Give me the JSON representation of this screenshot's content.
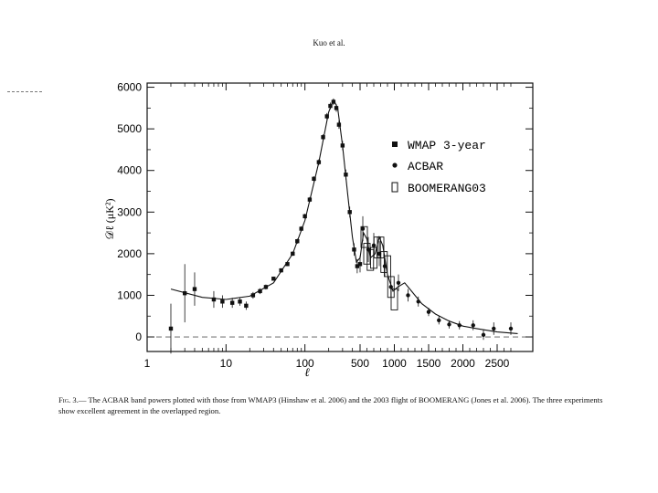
{
  "page": {
    "header": "Kuo et al.",
    "caption_label": "Fig. 3.—",
    "caption_text": "The ACBAR band powers plotted with those from WMAP3 (Hinshaw et al. 2006) and the 2003 flight of BOOMERANG (Jones et al. 2006). The three experiments show excellent agreement in the overlapped region."
  },
  "chart_data": {
    "type": "scatter",
    "title": "",
    "xlabel": "ℓ",
    "ylabel": "𝒟ℓ   (μK²)",
    "x_scale": "log below ℓ=500, linear above",
    "xlim": [
      1,
      2800
    ],
    "ylim": [
      -350,
      6100
    ],
    "x_ticks": [
      {
        "value": 1,
        "label": "1"
      },
      {
        "value": 10,
        "label": "10"
      },
      {
        "value": 100,
        "label": "100"
      },
      {
        "value": 500,
        "label": "500"
      },
      {
        "value": 1000,
        "label": "1000"
      },
      {
        "value": 1500,
        "label": "1500"
      },
      {
        "value": 2000,
        "label": "2000"
      },
      {
        "value": 2500,
        "label": "2500"
      }
    ],
    "y_ticks": [
      {
        "value": 0,
        "label": "0"
      },
      {
        "value": 1000,
        "label": "1000"
      },
      {
        "value": 2000,
        "label": "2000"
      },
      {
        "value": 3000,
        "label": "3000"
      },
      {
        "value": 4000,
        "label": "4000"
      },
      {
        "value": 5000,
        "label": "5000"
      },
      {
        "value": 6000,
        "label": "6000"
      }
    ],
    "legend_position": "upper-right",
    "series": [
      {
        "name": "WMAP 3-year",
        "marker": "square",
        "points": [
          {
            "x": 2,
            "y": 200,
            "err": 600
          },
          {
            "x": 3,
            "y": 1050,
            "err": 700
          },
          {
            "x": 4,
            "y": 1150,
            "err": 400
          },
          {
            "x": 7,
            "y": 900,
            "err": 200
          },
          {
            "x": 9,
            "y": 850,
            "err": 150
          },
          {
            "x": 12,
            "y": 820,
            "err": 120
          },
          {
            "x": 15,
            "y": 850,
            "err": 100
          },
          {
            "x": 18,
            "y": 750,
            "err": 100
          },
          {
            "x": 22,
            "y": 1000,
            "err": 80
          },
          {
            "x": 27,
            "y": 1100,
            "err": 70
          },
          {
            "x": 32,
            "y": 1200,
            "err": 60
          },
          {
            "x": 40,
            "y": 1400,
            "err": 50
          },
          {
            "x": 50,
            "y": 1600,
            "err": 50
          },
          {
            "x": 60,
            "y": 1750,
            "err": 50
          },
          {
            "x": 70,
            "y": 2000,
            "err": 50
          },
          {
            "x": 80,
            "y": 2300,
            "err": 60
          },
          {
            "x": 90,
            "y": 2600,
            "err": 60
          },
          {
            "x": 100,
            "y": 2900,
            "err": 60
          },
          {
            "x": 115,
            "y": 3300,
            "err": 60
          },
          {
            "x": 130,
            "y": 3800,
            "err": 60
          },
          {
            "x": 150,
            "y": 4200,
            "err": 70
          },
          {
            "x": 170,
            "y": 4800,
            "err": 70
          },
          {
            "x": 190,
            "y": 5300,
            "err": 80
          },
          {
            "x": 210,
            "y": 5550,
            "err": 80
          },
          {
            "x": 230,
            "y": 5650,
            "err": 80
          },
          {
            "x": 250,
            "y": 5500,
            "err": 90
          },
          {
            "x": 270,
            "y": 5100,
            "err": 100
          },
          {
            "x": 300,
            "y": 4600,
            "err": 110
          },
          {
            "x": 330,
            "y": 3900,
            "err": 120
          },
          {
            "x": 370,
            "y": 3000,
            "err": 130
          },
          {
            "x": 420,
            "y": 2100,
            "err": 150
          },
          {
            "x": 460,
            "y": 1700,
            "err": 170
          },
          {
            "x": 500,
            "y": 1750,
            "err": 200
          }
        ]
      },
      {
        "name": "ACBAR",
        "marker": "circle",
        "points": [
          {
            "x": 540,
            "y": 2600,
            "err": 300
          },
          {
            "x": 620,
            "y": 2100,
            "err": 300
          },
          {
            "x": 700,
            "y": 2200,
            "err": 300
          },
          {
            "x": 780,
            "y": 2000,
            "err": 300
          },
          {
            "x": 860,
            "y": 1700,
            "err": 250
          },
          {
            "x": 950,
            "y": 1200,
            "err": 250
          },
          {
            "x": 1060,
            "y": 1300,
            "err": 200
          },
          {
            "x": 1200,
            "y": 1000,
            "err": 150
          },
          {
            "x": 1350,
            "y": 850,
            "err": 120
          },
          {
            "x": 1500,
            "y": 600,
            "err": 100
          },
          {
            "x": 1650,
            "y": 400,
            "err": 100
          },
          {
            "x": 1800,
            "y": 300,
            "err": 100
          },
          {
            "x": 1950,
            "y": 280,
            "err": 100
          },
          {
            "x": 2150,
            "y": 280,
            "err": 120
          },
          {
            "x": 2300,
            "y": 50,
            "err": 120
          },
          {
            "x": 2450,
            "y": 200,
            "err": 150
          },
          {
            "x": 2700,
            "y": 200,
            "err": 150
          }
        ]
      },
      {
        "name": "BOOMERANG03",
        "marker": "box",
        "points": [
          {
            "x": 560,
            "y": 2400,
            "err": 250
          },
          {
            "x": 600,
            "y": 2000,
            "err": 250
          },
          {
            "x": 650,
            "y": 1850,
            "err": 250
          },
          {
            "x": 700,
            "y": 1900,
            "err": 250
          },
          {
            "x": 750,
            "y": 2150,
            "err": 250
          },
          {
            "x": 800,
            "y": 2150,
            "err": 250
          },
          {
            "x": 850,
            "y": 1800,
            "err": 250
          },
          {
            "x": 900,
            "y": 1700,
            "err": 250
          },
          {
            "x": 950,
            "y": 1200,
            "err": 250
          },
          {
            "x": 1000,
            "y": 900,
            "err": 250
          }
        ]
      }
    ],
    "model_curve": [
      {
        "x": 2,
        "y": 1150
      },
      {
        "x": 5,
        "y": 950
      },
      {
        "x": 10,
        "y": 900
      },
      {
        "x": 20,
        "y": 980
      },
      {
        "x": 40,
        "y": 1300
      },
      {
        "x": 70,
        "y": 2000
      },
      {
        "x": 100,
        "y": 2800
      },
      {
        "x": 150,
        "y": 4200
      },
      {
        "x": 200,
        "y": 5400
      },
      {
        "x": 230,
        "y": 5700
      },
      {
        "x": 260,
        "y": 5500
      },
      {
        "x": 300,
        "y": 4600
      },
      {
        "x": 350,
        "y": 3400
      },
      {
        "x": 400,
        "y": 2400
      },
      {
        "x": 450,
        "y": 1800
      },
      {
        "x": 500,
        "y": 1900
      },
      {
        "x": 550,
        "y": 2500
      },
      {
        "x": 600,
        "y": 2350
      },
      {
        "x": 650,
        "y": 1900
      },
      {
        "x": 720,
        "y": 2000
      },
      {
        "x": 780,
        "y": 2400
      },
      {
        "x": 830,
        "y": 2200
      },
      {
        "x": 900,
        "y": 1500
      },
      {
        "x": 980,
        "y": 1100
      },
      {
        "x": 1050,
        "y": 1200
      },
      {
        "x": 1150,
        "y": 1300
      },
      {
        "x": 1250,
        "y": 1100
      },
      {
        "x": 1400,
        "y": 800
      },
      {
        "x": 1600,
        "y": 550
      },
      {
        "x": 1800,
        "y": 380
      },
      {
        "x": 2000,
        "y": 260
      },
      {
        "x": 2200,
        "y": 200
      },
      {
        "x": 2500,
        "y": 120
      },
      {
        "x": 2800,
        "y": 80
      }
    ]
  }
}
